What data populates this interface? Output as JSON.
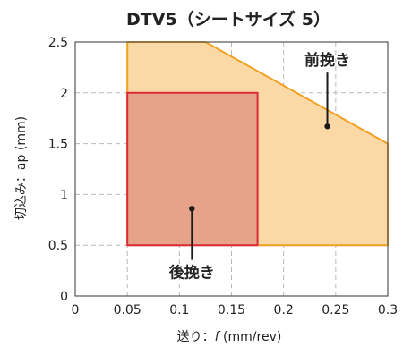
{
  "chart_data": {
    "type": "area",
    "title": "DTV5（シートサイズ 5）",
    "xlabel_prefix": "送り：",
    "xlabel_symbol": "f",
    "xlabel_unit": " (mm/rev)",
    "ylabel": "切込み：ap (mm)",
    "xlim": [
      0,
      0.3
    ],
    "ylim": [
      0,
      2.5
    ],
    "xticks": [
      0,
      0.05,
      0.1,
      0.15,
      0.2,
      0.25,
      0.3
    ],
    "xtick_labels": [
      "0",
      "0.05",
      "0.1",
      "0.15",
      "0.2",
      "0.25",
      "0.3"
    ],
    "yticks": [
      0,
      0.5,
      1,
      1.5,
      2,
      2.5
    ],
    "ytick_labels": [
      "0",
      "0.5",
      "1",
      "1.5",
      "2",
      "2.5"
    ],
    "grid": true,
    "regions": [
      {
        "name": "前挽き",
        "fill": "#fad9a6",
        "stroke": "#f0a020",
        "points": [
          [
            0.05,
            0.5
          ],
          [
            0.05,
            2.5
          ],
          [
            0.125,
            2.5
          ],
          [
            0.3,
            1.5
          ],
          [
            0.3,
            0.5
          ]
        ],
        "marker": [
          0.242,
          1.67
        ],
        "label_at": [
          0.242,
          2.27
        ]
      },
      {
        "name": "後挽き",
        "fill": "#e6a38a",
        "stroke": "#d92b3a",
        "points": [
          [
            0.05,
            0.5
          ],
          [
            0.05,
            2.0
          ],
          [
            0.175,
            2.0
          ],
          [
            0.175,
            0.5
          ]
        ],
        "marker": [
          0.112,
          0.86
        ],
        "label_at": [
          0.112,
          0.18
        ]
      }
    ]
  }
}
